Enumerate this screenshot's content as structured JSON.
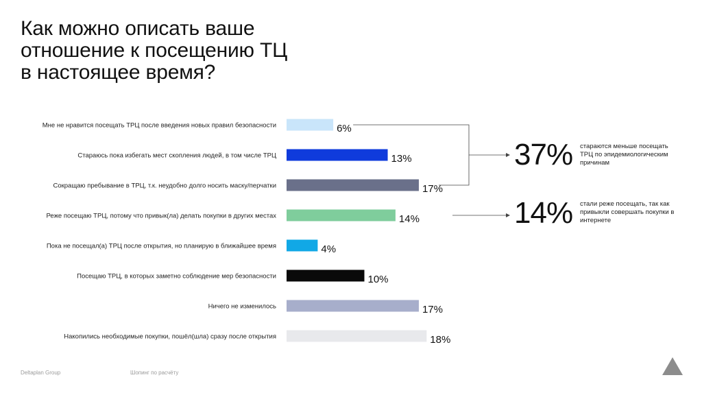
{
  "title_lines": [
    "Как можно описать ваше",
    "отношение к посещению ТЦ",
    "в настоящее время?"
  ],
  "chart_data": {
    "type": "bar",
    "orientation": "horizontal",
    "categories": [
      "Мне не нравится посещать ТРЦ после введения новых правил безопасности",
      "Стараюсь пока избегать мест скопления людей, в том числе ТРЦ",
      "Сокращаю пребывание в ТРЦ, т.к. неудобно долго носить маску/перчатки",
      "Реже посещаю ТРЦ, потому что привык(ла) делать покупки в других местах",
      "Пока не посещал(а) ТРЦ после открытия, но планирую в ближайшее время",
      "Посещаю ТРЦ, в которых заметно соблюдение мер безопасности",
      "Ничего не изменилось",
      "Накопились необходимые покупки, пошёл(шла) сразу после открытия"
    ],
    "values": [
      6,
      13,
      17,
      14,
      4,
      10,
      17,
      18
    ],
    "value_labels": [
      "6%",
      "13%",
      "17%",
      "14%",
      "4%",
      "10%",
      "17%",
      "18%"
    ],
    "colors": [
      "#c9e5fa",
      "#0f3bdc",
      "#6a708a",
      "#7fcd9c",
      "#11a8e6",
      "#0a0a0a",
      "#a7aecb",
      "#e8e9ec"
    ],
    "unit": "%",
    "grid": false
  },
  "summaries": [
    {
      "value": "37%",
      "text": "стараются меньше посещать ТРЦ по эпидемиологическим причинам",
      "bracket_rows": [
        0,
        1,
        2
      ]
    },
    {
      "value": "14%",
      "text": "стали реже посещать, так как привыкли совершать покупки в интернете",
      "bracket_rows": [
        3
      ]
    }
  ],
  "footer": {
    "company": "Deltaplan Group",
    "series": "Шопинг по расчёту"
  },
  "logo_icon": "triangle-logo-icon",
  "logo_color": "#8c8c8c"
}
